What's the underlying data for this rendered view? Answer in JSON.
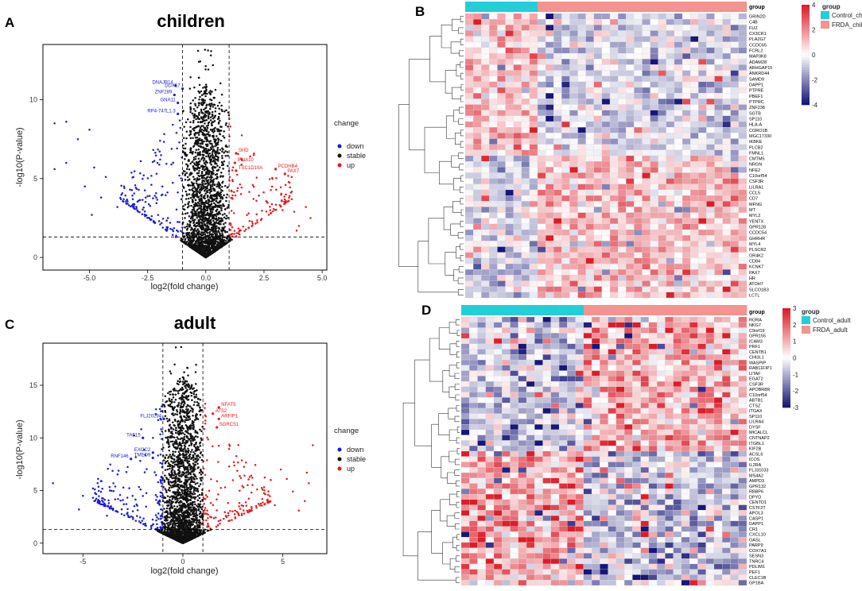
{
  "panels": {
    "A": "A",
    "B": "B",
    "C": "C",
    "D": "D"
  },
  "chart_data": [
    {
      "type": "scatter",
      "panel": "A",
      "title": "children",
      "xlabel": "log2(fold change)",
      "ylabel": "-log10(P-value)",
      "xlim": [
        -7,
        5.2
      ],
      "ylim": [
        -0.8,
        13.5
      ],
      "xticks": [
        -5.0,
        -2.5,
        0.0,
        2.5,
        5.0
      ],
      "xtick_labels": [
        "-5.0",
        "-2.5",
        "0.0",
        "2.5",
        "5.0"
      ],
      "yticks": [
        0,
        5,
        10
      ],
      "ytick_labels": [
        "0",
        "5",
        "10"
      ],
      "thresholds": {
        "x": [
          -1,
          1
        ],
        "y": 1.3
      },
      "legend": {
        "title": "change",
        "entries": [
          {
            "label": "down",
            "color": "#1a1ad6"
          },
          {
            "label": "stable",
            "color": "#111111"
          },
          {
            "label": "up",
            "color": "#e31a1c"
          }
        ]
      },
      "labeled_points": [
        {
          "label": "DNAJB14",
          "x": -1.3,
          "y": 10.9,
          "group": "down"
        },
        {
          "label": "DDX17",
          "x": -1.0,
          "y": 10.7,
          "group": "down"
        },
        {
          "label": "ZNF289",
          "x": -1.35,
          "y": 10.3,
          "group": "down"
        },
        {
          "label": "GNA11",
          "x": -1.2,
          "y": 9.8,
          "group": "down"
        },
        {
          "label": "RP4-747L1.3",
          "x": -1.2,
          "y": 9.1,
          "group": "down"
        },
        {
          "label": "SHD",
          "x": 1.3,
          "y": 6.6,
          "group": "up"
        },
        {
          "label": "IFNA10",
          "x": 1.25,
          "y": 6.0,
          "group": "up"
        },
        {
          "label": "PCDHB4",
          "x": 3.0,
          "y": 5.6,
          "group": "up"
        },
        {
          "label": "TSC1D10A",
          "x": 1.3,
          "y": 5.5,
          "group": "up"
        },
        {
          "label": "PAX7",
          "x": 3.4,
          "y": 5.3,
          "group": "up"
        }
      ],
      "outliers": [
        [
          -6.5,
          8.5
        ],
        [
          -6.0,
          8.6
        ],
        [
          -5.0,
          8.1
        ],
        [
          -5.5,
          7.5
        ],
        [
          -6.0,
          6.0
        ],
        [
          -4.8,
          5.7
        ],
        [
          -5.2,
          4.5
        ],
        [
          -6.5,
          5.6
        ],
        [
          -4.3,
          5.1
        ],
        [
          -4.5,
          3.8
        ],
        [
          -3.8,
          3.2
        ],
        [
          -4.9,
          2.7
        ],
        [
          -3.5,
          4.4
        ],
        [
          4.3,
          3.2
        ],
        [
          4.5,
          2.5
        ],
        [
          4.0,
          2.0
        ],
        [
          3.8,
          2.9
        ],
        [
          3.9,
          1.7
        ],
        [
          3.3,
          3.0
        ],
        [
          3.6,
          3.9
        ]
      ]
    },
    {
      "type": "scatter",
      "panel": "C",
      "title": "adult",
      "xlabel": "log2(fold change)",
      "ylabel": "-log10(P-value)",
      "xlim": [
        -7,
        7.2
      ],
      "ylim": [
        -1,
        19
      ],
      "xticks": [
        -5,
        0,
        5
      ],
      "xtick_labels": [
        "-5",
        "0",
        "5"
      ],
      "yticks": [
        0,
        5,
        10,
        15
      ],
      "ytick_labels": [
        "0",
        "5",
        "10",
        "15"
      ],
      "thresholds": {
        "x": [
          -1,
          1
        ],
        "y": 1.3
      },
      "legend": {
        "title": "change",
        "entries": [
          {
            "label": "down",
            "color": "#1a1ad6"
          },
          {
            "label": "stable",
            "color": "#111111"
          },
          {
            "label": "up",
            "color": "#e31a1c"
          }
        ]
      },
      "labeled_points": [
        {
          "label": "NFAT5",
          "x": 1.8,
          "y": 12.9,
          "group": "up"
        },
        {
          "label": "ATS2",
          "x": 1.5,
          "y": 12.3,
          "group": "up"
        },
        {
          "label": "ARFIP1",
          "x": 1.8,
          "y": 11.8,
          "group": "up"
        },
        {
          "label": "SGRCS1",
          "x": 1.7,
          "y": 11.0,
          "group": "up"
        },
        {
          "label": "FLJ20294",
          "x": -0.95,
          "y": 11.8,
          "group": "down"
        },
        {
          "label": "TAF15",
          "x": -2.0,
          "y": 10.0,
          "group": "down"
        },
        {
          "label": "EXOC2",
          "x": -1.5,
          "y": 8.6,
          "group": "down"
        },
        {
          "label": "RNF146",
          "x": -2.6,
          "y": 8.0,
          "group": "down"
        },
        {
          "label": "TMED9",
          "x": -1.5,
          "y": 8.1,
          "group": "down"
        }
      ],
      "outliers": [
        [
          -6.5,
          5.7
        ],
        [
          -5.0,
          4.5
        ],
        [
          -4.5,
          5.2
        ],
        [
          -4.2,
          3.8
        ],
        [
          -5.2,
          3.2
        ],
        [
          -3.6,
          3.5
        ],
        [
          -3.8,
          2.6
        ],
        [
          6.5,
          9.3
        ],
        [
          6.3,
          5.7
        ],
        [
          5.5,
          4.9
        ],
        [
          5.8,
          3.1
        ],
        [
          6.2,
          6.7
        ],
        [
          6.1,
          4.0
        ],
        [
          5.2,
          6.1
        ],
        [
          4.9,
          7.0
        ],
        [
          4.6,
          3.6
        ]
      ]
    },
    {
      "type": "heatmap",
      "panel": "B",
      "legend_title": "group",
      "scale_ticks": [
        "4",
        "2",
        "0",
        "-2",
        "-4"
      ],
      "scale_range": [
        -4,
        4
      ],
      "groups": [
        {
          "name": "Control_children",
          "color": "#22cfd8",
          "n_samples": 9
        },
        {
          "name": "FRDA_children",
          "color": "#f4938f",
          "n_samples": 26
        }
      ],
      "genes": [
        "GRIN2D",
        "C4B",
        "FUZ",
        "CX3CR1",
        "PLA2G7",
        "CCDC65",
        "FCRL2",
        "MAP3K8",
        "ADAM28",
        "ARHGAP15",
        "ANKRD44",
        "SAMD9",
        "DAPP1",
        "PTPRE",
        "PBEF1",
        "PTPRC",
        "ZNF238",
        "SGTB",
        "SP110",
        "HLA-A",
        "CORO1B",
        "MGC17330",
        "IKBKE",
        "PLCB2",
        "FMNL1",
        "CMTM5",
        "NRGN",
        "NFE2",
        "C10orf54",
        "CSF3R",
        "LILRA1",
        "CCL5",
        "CD7",
        "MFNG",
        "MT",
        "MYL2",
        "YENTX",
        "GPR128",
        "CCDC54",
        "GHRHR",
        "MYL4",
        "PLSCR2",
        "OR4K2",
        "CD84",
        "KCNK7",
        "PAX7",
        "HR",
        "ATOH7",
        "SLCO1B3",
        "LCTL"
      ],
      "n_up_in_control": 25
    },
    {
      "type": "heatmap",
      "panel": "D",
      "legend_title": "group",
      "column_label": "group",
      "scale_ticks": [
        "3",
        "2",
        "1",
        "0",
        "-1",
        "-2",
        "-3"
      ],
      "scale_range": [
        -3,
        3
      ],
      "groups": [
        {
          "name": "Control_adult",
          "color": "#22cfd8",
          "n_samples": 15
        },
        {
          "name": "FRDA_adult",
          "color": "#f4938f",
          "n_samples": 20
        }
      ],
      "genes": [
        "RORA",
        "NKG7",
        "C9orf19",
        "GPR155",
        "ICAM3",
        "PRF1",
        "CENTB1",
        "CHI3L1",
        "WASPIP",
        "RAB11FIP1",
        "LITAF",
        "EGAT2",
        "CSF3R",
        "APOBR8R",
        "C10orf54",
        "ABTB1",
        "CTSZ",
        "ITGAX",
        "SP110",
        "LILRA4",
        "DYSF",
        "MICALCL",
        "CNTNAP2",
        "ITGBL1",
        "KIF2B",
        "ACSL6",
        "ICOS",
        "IL2RA",
        "FLJ31033",
        "MS4A2",
        "AMPD3",
        "GPR132",
        "RBBP6",
        "DPYD",
        "CENTD1",
        "CSTF2T",
        "APOL3",
        "CASP1",
        "DAPP1",
        "CR1",
        "CXCL10",
        "OASL",
        "PARP9",
        "COX7A1",
        "SESN3",
        "TNRC4",
        "PDLIM1",
        "PEF1",
        "CLEC1B",
        "GP1BA"
      ],
      "n_up_in_frda": 25
    }
  ]
}
